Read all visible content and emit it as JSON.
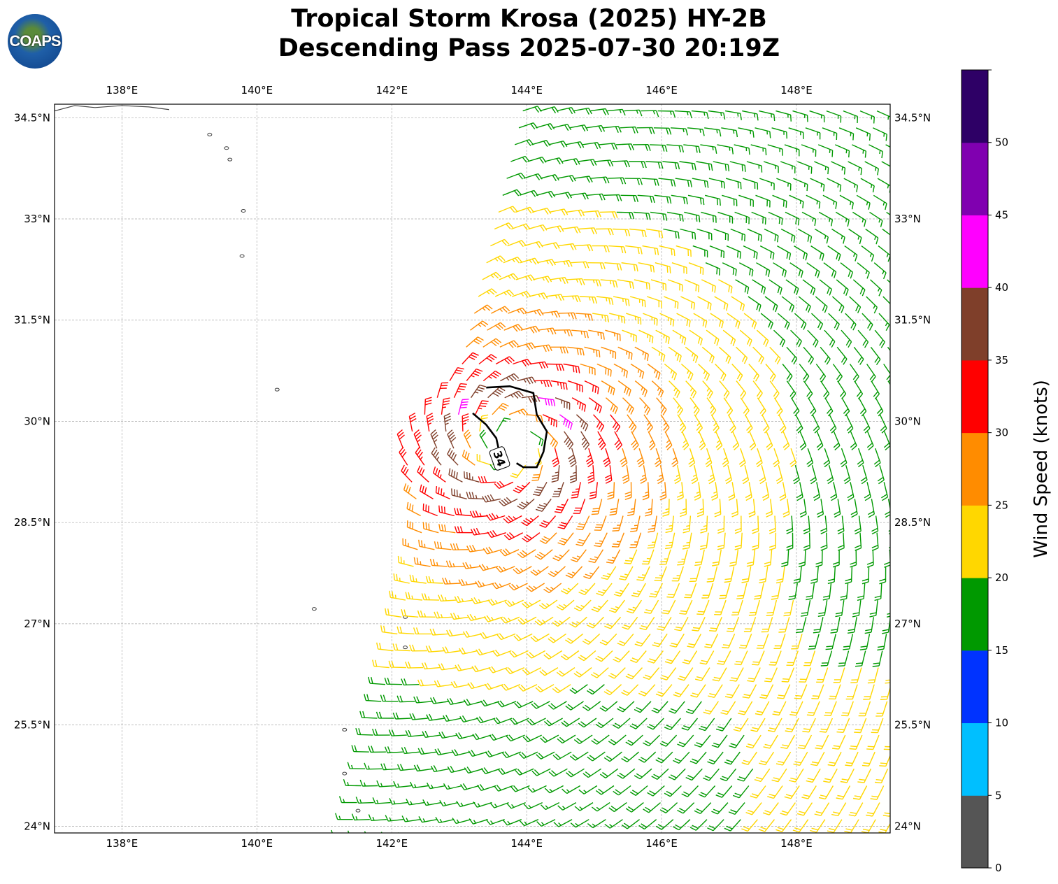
{
  "title_line1": "Tropical Storm Krosa (2025) HY-2B",
  "title_line2": "Descending Pass 2025-07-30 20:19Z",
  "logo_text": "COAPS",
  "chart_data": {
    "type": "map-wind-barbs",
    "lon_range": [
      137.0,
      149.39
    ],
    "lat_range": [
      23.9,
      34.7
    ],
    "x_ticks": [
      {
        "v": 138,
        "label": "138°E"
      },
      {
        "v": 140,
        "label": "140°E"
      },
      {
        "v": 142,
        "label": "142°E"
      },
      {
        "v": 144,
        "label": "144°E"
      },
      {
        "v": 146,
        "label": "146°E"
      },
      {
        "v": 148,
        "label": "148°E"
      }
    ],
    "y_ticks": [
      {
        "v": 24,
        "label": "24°N"
      },
      {
        "v": 25.5,
        "label": "25.5°N"
      },
      {
        "v": 27,
        "label": "27°N"
      },
      {
        "v": 28.5,
        "label": "28.5°N"
      },
      {
        "v": 30,
        "label": "30°N"
      },
      {
        "v": 31.5,
        "label": "31.5°N"
      },
      {
        "v": 33,
        "label": "33°N"
      },
      {
        "v": 34.5,
        "label": "34.5°N"
      }
    ],
    "grid": true,
    "storm_center": [
      143.75,
      29.65
    ],
    "swath_left_edge": {
      "lat0": 24.0,
      "lon0": 141.4,
      "slope": 0.24
    },
    "barb_spacing_deg": 0.25,
    "contour_34kt": {
      "label": "34",
      "label_pos": [
        143.6,
        29.45
      ],
      "segments": [
        [
          [
            143.4,
            30.5
          ],
          [
            143.75,
            30.52
          ],
          [
            144.1,
            30.42
          ],
          [
            144.15,
            30.1
          ],
          [
            144.3,
            29.85
          ],
          [
            144.25,
            29.55
          ],
          [
            144.15,
            29.32
          ],
          [
            143.95,
            29.32
          ],
          [
            143.85,
            29.38
          ]
        ],
        [
          [
            143.2,
            30.12
          ],
          [
            143.4,
            29.95
          ],
          [
            143.55,
            29.75
          ],
          [
            143.6,
            29.52
          ]
        ]
      ]
    },
    "islands": [
      [
        139.3,
        34.25
      ],
      [
        139.55,
        34.05
      ],
      [
        139.6,
        33.88
      ],
      [
        139.8,
        33.12
      ],
      [
        139.78,
        32.45
      ],
      [
        140.3,
        30.47
      ],
      [
        140.85,
        27.22
      ],
      [
        142.2,
        27.1
      ],
      [
        142.2,
        26.65
      ],
      [
        141.3,
        25.43
      ],
      [
        141.3,
        24.78
      ],
      [
        141.5,
        24.23
      ]
    ],
    "coast_japan": [
      [
        137.0,
        34.6
      ],
      [
        137.3,
        34.68
      ],
      [
        137.6,
        34.65
      ],
      [
        138.0,
        34.68
      ],
      [
        138.4,
        34.66
      ],
      [
        138.7,
        34.62
      ]
    ],
    "colorbar": {
      "label": "Wind Speed (knots)",
      "bounds": [
        0,
        5,
        10,
        15,
        20,
        25,
        30,
        35,
        40,
        45,
        50,
        55
      ],
      "tick_labels": [
        "0",
        "5",
        "10",
        "15",
        "20",
        "25",
        "30",
        "35",
        "40",
        "45",
        "50"
      ],
      "colors": [
        "#555555",
        "#00bfff",
        "#0033ff",
        "#009900",
        "#ffd700",
        "#ff8c00",
        "#ff0000",
        "#7f3f2a",
        "#ff00ff",
        "#8000b0",
        "#2e0066"
      ]
    }
  }
}
